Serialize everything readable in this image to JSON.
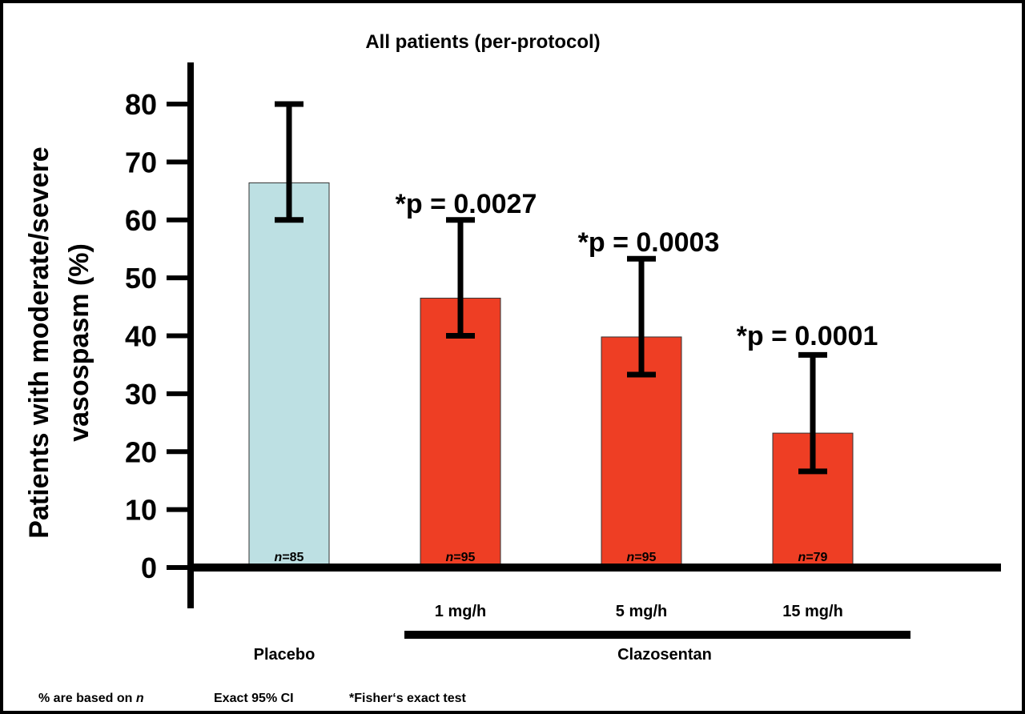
{
  "chart_data": {
    "type": "bar",
    "title": "All patients (per-protocol)",
    "ylabel_lines": [
      "Patients with moderate/severe",
      "vasospasm (%)"
    ],
    "xlabel": "",
    "ylim": [
      0,
      80
    ],
    "yticks": [
      "0",
      "10",
      "20",
      "30",
      "40",
      "50",
      "60",
      "70",
      "80"
    ],
    "categories": [
      "Placebo",
      "1 mg/h",
      "5 mg/h",
      "15 mg/h"
    ],
    "values": [
      66.4,
      46.5,
      39.8,
      23.2
    ],
    "ci_low": [
      60.0,
      40.0,
      33.3,
      16.6
    ],
    "ci_high": [
      80.0,
      60.0,
      53.3,
      36.7
    ],
    "n_labels": [
      {
        "prefix": "n",
        "value": "=85"
      },
      {
        "prefix": "n",
        "value": "=95"
      },
      {
        "prefix": "n",
        "value": "=95"
      },
      {
        "prefix": "n",
        "value": "=79"
      }
    ],
    "p_labels": [
      null,
      "*p = 0.0027",
      "*p = 0.0003",
      "*p = 0.0001"
    ],
    "colors": [
      "#bde0e3",
      "#ee3e24",
      "#ee3e24",
      "#ee3e24"
    ],
    "group_labels": {
      "placebo": "Placebo",
      "treatment": "Clazosentan"
    },
    "grid": false,
    "legend": "none"
  },
  "footnotes": [
    "% are based on ",
    "n",
    "Exact 95% CI",
    "*Fisher‘s exact test"
  ]
}
